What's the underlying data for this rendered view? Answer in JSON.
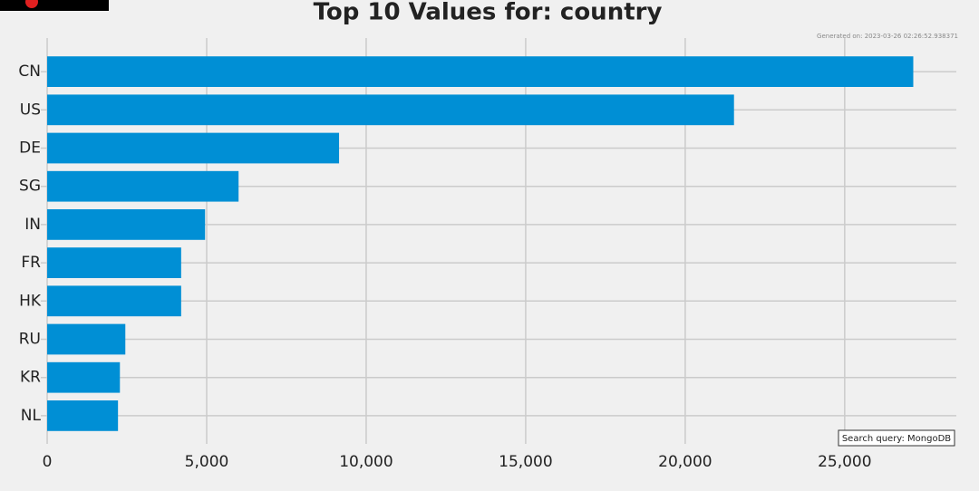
{
  "chart_data": {
    "type": "barh",
    "title": "Top 10 Values for: country",
    "subtitle": "Generated on: 2023-03-26 02:26:52.938371",
    "annotation": "Search query: MongoDB",
    "categories": [
      "CN",
      "US",
      "DE",
      "SG",
      "IN",
      "FR",
      "HK",
      "RU",
      "KR",
      "NL"
    ],
    "values": [
      27150,
      21530,
      9150,
      6000,
      4950,
      4200,
      4200,
      2450,
      2280,
      2220
    ],
    "color": "#008fd5",
    "xlim": [
      -200,
      28500
    ],
    "xticks": [
      0,
      {
        "value": 5000,
        "label": "5,000"
      },
      {
        "value": 10000,
        "label": "10,000"
      },
      {
        "value": 15000,
        "label": "15,000"
      },
      {
        "value": 20000,
        "label": "20,000"
      },
      {
        "value": 25000,
        "label": "25,000"
      }
    ],
    "grid": true
  }
}
